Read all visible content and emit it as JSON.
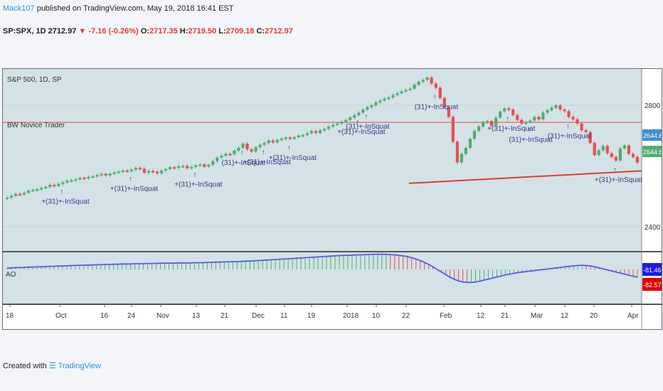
{
  "header": {
    "author": "Mack107",
    "published": " published on TradingView.com, May 19, 2018 16:41 EST",
    "symbol_line": "SP:SPX, 1D 2712.97",
    "change": "▼ -7.16 (-0.26%)",
    "o_label": "O:",
    "o_value": "2717.35",
    "h_label": "H:",
    "h_value": "2719.50",
    "l_label": "L:",
    "l_value": "2709.18",
    "c_label": "C:",
    "c_value": "2712.97"
  },
  "colors": {
    "pane_bg": "#d3e2e6",
    "up": "#4caf74",
    "down": "#e84d52",
    "hline": "#e57a7a",
    "trendline": "#e53935",
    "ao_line": "#5b5bdc",
    "axis_badge_blue": "#3a8fd6",
    "axis_badge_green": "#4caf74",
    "ao_badge_blue": "#1a1aee",
    "ao_badge_red": "#e00000"
  },
  "chart_data": {
    "type": "candlestick",
    "title": "S&P 500, 1D, SP",
    "indicator_label": "BW Novice Trader",
    "y_ticks": [
      2800,
      2400
    ],
    "ylim": [
      2320,
      2920
    ],
    "x_tick_labels": [
      "18",
      "Oct",
      "16",
      "24",
      "Nov",
      "13",
      "21",
      "Dec",
      "11",
      "19",
      "2018",
      "10",
      "22",
      "Feb",
      "12",
      "21",
      "Mar",
      "12",
      "20",
      "Apr"
    ],
    "price_badges": [
      "2644.69",
      "2644.69"
    ],
    "horizontal_level": 2744,
    "trendline": {
      "from": 2543,
      "to": 2584
    },
    "close": [
      2496,
      2502,
      2508,
      2506,
      2512,
      2519,
      2521,
      2523,
      2528,
      2531,
      2538,
      2534,
      2541,
      2546,
      2551,
      2553,
      2556,
      2561,
      2559,
      2564,
      2566,
      2570,
      2574,
      2569,
      2575,
      2579,
      2582,
      2585,
      2583,
      2588,
      2594,
      2591,
      2578,
      2584,
      2581,
      2576,
      2585,
      2590,
      2596,
      2594,
      2599,
      2600,
      2593,
      2597,
      2602,
      2605,
      2598,
      2604,
      2616,
      2628,
      2634,
      2640,
      2639,
      2651,
      2660,
      2674,
      2655,
      2648,
      2662,
      2670,
      2676,
      2684,
      2678,
      2686,
      2690,
      2694,
      2690,
      2695,
      2700,
      2702,
      2708,
      2715,
      2709,
      2718,
      2722,
      2730,
      2736,
      2740,
      2746,
      2752,
      2760,
      2768,
      2776,
      2786,
      2794,
      2800,
      2810,
      2816,
      2822,
      2826,
      2834,
      2840,
      2846,
      2851,
      2855,
      2868,
      2878,
      2884,
      2892,
      2872,
      2858,
      2824,
      2794,
      2762,
      2680,
      2612,
      2640,
      2660,
      2690,
      2716,
      2730,
      2744,
      2748,
      2733,
      2760,
      2780,
      2790,
      2786,
      2768,
      2752,
      2740,
      2744,
      2750,
      2762,
      2754,
      2776,
      2784,
      2792,
      2800,
      2786,
      2781,
      2762,
      2754,
      2740,
      2718,
      2712,
      2676,
      2636,
      2652,
      2666,
      2642,
      2630,
      2618,
      2658,
      2668,
      2640,
      2630,
      2612
    ],
    "ao_label": "AO",
    "ao_badges": [
      "-81.4651",
      "-82.5719"
    ],
    "ao_values": [
      5,
      6,
      7,
      7,
      8,
      9,
      9,
      10,
      10,
      11,
      12,
      12,
      13,
      13,
      14,
      15,
      15,
      16,
      16,
      17,
      17,
      18,
      18,
      19,
      19,
      20,
      20,
      21,
      21,
      21,
      22,
      22,
      22,
      23,
      23,
      23,
      24,
      24,
      24,
      24,
      25,
      25,
      25,
      25,
      26,
      26,
      26,
      27,
      27,
      28,
      28,
      29,
      29,
      30,
      30,
      31,
      32,
      32,
      33,
      34,
      35,
      36,
      37,
      38,
      39,
      40,
      41,
      42,
      43,
      44,
      45,
      46,
      47,
      48,
      49,
      50,
      51,
      52,
      53,
      54,
      54,
      55,
      56,
      56,
      57,
      57,
      58,
      58,
      58,
      58,
      57,
      56,
      54,
      52,
      49,
      45,
      40,
      34,
      27,
      19,
      10,
      0,
      -10,
      -20,
      -30,
      -38,
      -44,
      -48,
      -50,
      -50,
      -48,
      -45,
      -41,
      -37,
      -33,
      -29,
      -25,
      -21,
      -18,
      -15,
      -12,
      -10,
      -8,
      -6,
      -4,
      -2,
      0,
      2,
      4,
      6,
      8,
      10,
      12,
      14,
      15,
      16,
      15,
      13,
      10,
      6,
      2,
      -2,
      -6,
      -10,
      -14,
      -18,
      -22,
      -26,
      -30
    ],
    "signal_labels": [
      "+(31)+-InSquat",
      "+(31)+-InSquat",
      "+(31)+-InSquat",
      "(31)+-InSquat",
      "+(31)+-InSquat",
      "+(31)+-InSquat",
      "+(31)+-InSquat",
      "(31)+-InSquat",
      "(31)+-InSquat",
      "+(31)+-InSquat",
      "(31)+-InSquat",
      "+(31)+-InSquat",
      "(31)+-InSquat"
    ]
  },
  "footer": {
    "created_with": "Created with",
    "brand": "TradingView"
  }
}
